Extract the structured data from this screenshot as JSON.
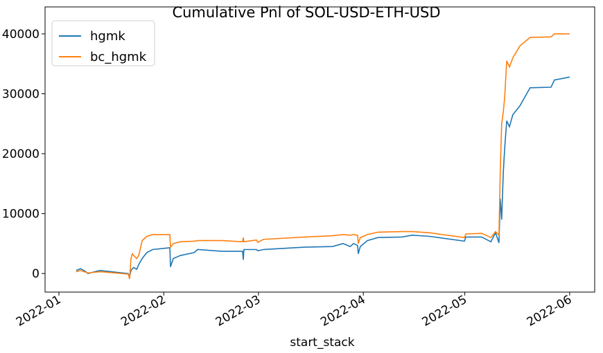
{
  "chart_data": {
    "type": "line",
    "title": "Cumulative Pnl of SOL-USD-ETH-USD",
    "x_label": "start_stack",
    "x": [
      5.1,
      6.4,
      8.0,
      8.6,
      11.3,
      12.3,
      20.5,
      20.9,
      21.3,
      21.7,
      22.1,
      23.0,
      23.6,
      24.6,
      26.0,
      27.7,
      32.8,
      33.0,
      33.8,
      35.9,
      40.0,
      41.0,
      48.2,
      54.3,
      54.5,
      54.7,
      58.4,
      58.8,
      60.5,
      72.7,
      80.9,
      84.0,
      86.1,
      87.1,
      88.3,
      88.5,
      89.1,
      91.2,
      94.3,
      101.4,
      104.5,
      109.6,
      119.9,
      120.3,
      125.0,
      127.7,
      129.1,
      130.1,
      130.5,
      130.9,
      131.4,
      131.8,
      132.4,
      133.2,
      134.2,
      136.3,
      139.3,
      145.5,
      146.5,
      151.0
    ],
    "series": [
      {
        "name": "hgmk",
        "color": "#1f77b4",
        "values": [
          500,
          800,
          300,
          0,
          400,
          500,
          0,
          -500,
          500,
          800,
          1000,
          700,
          1500,
          2500,
          3500,
          4000,
          4300,
          1100,
          2500,
          3000,
          3500,
          4000,
          3700,
          3700,
          2300,
          4000,
          4000,
          3800,
          4000,
          4400,
          4500,
          5000,
          4500,
          5000,
          4700,
          3300,
          4500,
          5500,
          6000,
          6100,
          6400,
          6200,
          5400,
          6100,
          6100,
          5300,
          6800,
          5100,
          12500,
          9000,
          17000,
          21000,
          25500,
          24500,
          26500,
          28000,
          31000,
          31100,
          32300,
          32800
        ]
      },
      {
        "name": "bc_hgmk",
        "color": "#ff7f0e",
        "values": [
          300,
          500,
          200,
          100,
          250,
          300,
          -100,
          -900,
          2500,
          3300,
          3000,
          2500,
          3000,
          5500,
          6200,
          6500,
          6500,
          4400,
          5000,
          5300,
          5400,
          5500,
          5500,
          5300,
          6000,
          5300,
          5600,
          5200,
          5700,
          6100,
          6300,
          6500,
          6400,
          6500,
          6400,
          5000,
          6000,
          6500,
          6900,
          7000,
          7000,
          6800,
          6000,
          6600,
          6700,
          6000,
          7000,
          6400,
          17000,
          25000,
          27000,
          29500,
          35500,
          34500,
          36000,
          38000,
          39400,
          39500,
          40000,
          40000
        ]
      }
    ],
    "xlim": [
      -4.1,
      158.4
    ],
    "xticks": [
      {
        "value": 0,
        "label": "2022-01"
      },
      {
        "value": 31,
        "label": "2022-02"
      },
      {
        "value": 59,
        "label": "2022-03"
      },
      {
        "value": 90,
        "label": "2022-04"
      },
      {
        "value": 120,
        "label": "2022-05"
      },
      {
        "value": 151,
        "label": "2022-06"
      }
    ],
    "ylim": [
      -3100,
      44500
    ],
    "yticks": [
      0,
      10000,
      20000,
      30000,
      40000
    ],
    "legend": "upper left"
  }
}
